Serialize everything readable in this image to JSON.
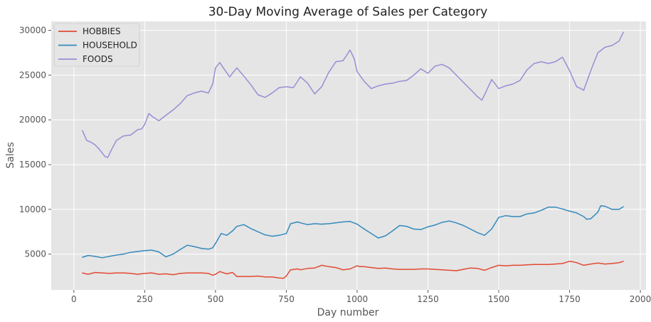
{
  "chart_data": {
    "type": "line",
    "title": "30-Day Moving Average of Sales per Category",
    "xlabel": "Day number",
    "ylabel": "Sales",
    "xlim": [
      -80,
      2020
    ],
    "ylim": [
      1000,
      31000
    ],
    "xticks": [
      0,
      250,
      500,
      750,
      1000,
      1250,
      1500,
      1750,
      2000
    ],
    "yticks": [
      5000,
      10000,
      15000,
      20000,
      25000,
      30000
    ],
    "grid": true,
    "legend_position": "top-left",
    "colors": {
      "background": "#E5E5E5",
      "grid": "#FFFFFF"
    },
    "series": [
      {
        "name": "HOBBIES",
        "color": "#E24A33",
        "x": [
          30,
          50,
          75,
          100,
          125,
          150,
          175,
          200,
          225,
          250,
          275,
          300,
          325,
          350,
          375,
          400,
          425,
          450,
          475,
          490,
          500,
          515,
          540,
          560,
          575,
          600,
          625,
          650,
          675,
          700,
          720,
          740,
          750,
          765,
          790,
          800,
          825,
          850,
          875,
          900,
          925,
          950,
          975,
          1000,
          1010,
          1025,
          1050,
          1075,
          1100,
          1125,
          1150,
          1175,
          1200,
          1225,
          1250,
          1275,
          1300,
          1325,
          1350,
          1375,
          1400,
          1425,
          1450,
          1475,
          1500,
          1525,
          1550,
          1575,
          1600,
          1625,
          1650,
          1675,
          1700,
          1725,
          1750,
          1760,
          1775,
          1800,
          1825,
          1850,
          1875,
          1900,
          1925,
          1940
        ],
        "values": [
          2900,
          2750,
          2950,
          2900,
          2850,
          2900,
          2900,
          2850,
          2750,
          2850,
          2900,
          2750,
          2800,
          2700,
          2850,
          2900,
          2900,
          2900,
          2850,
          2650,
          2750,
          3050,
          2800,
          2950,
          2500,
          2500,
          2500,
          2550,
          2450,
          2450,
          2350,
          2300,
          2550,
          3250,
          3350,
          3250,
          3400,
          3450,
          3750,
          3600,
          3500,
          3250,
          3350,
          3700,
          3600,
          3600,
          3500,
          3400,
          3450,
          3350,
          3300,
          3300,
          3300,
          3350,
          3350,
          3300,
          3250,
          3200,
          3150,
          3300,
          3450,
          3400,
          3200,
          3500,
          3750,
          3700,
          3750,
          3750,
          3800,
          3850,
          3850,
          3850,
          3900,
          3950,
          4200,
          4150,
          4050,
          3750,
          3900,
          4000,
          3900,
          3950,
          4050,
          4200
        ]
      },
      {
        "name": "HOUSEHOLD",
        "color": "#348ABD",
        "x": [
          30,
          50,
          75,
          100,
          125,
          150,
          175,
          200,
          225,
          250,
          275,
          300,
          325,
          350,
          375,
          400,
          425,
          450,
          475,
          490,
          500,
          520,
          540,
          560,
          575,
          600,
          625,
          650,
          675,
          700,
          725,
          750,
          765,
          790,
          800,
          825,
          850,
          875,
          900,
          925,
          950,
          975,
          1000,
          1025,
          1050,
          1075,
          1100,
          1125,
          1150,
          1175,
          1200,
          1225,
          1250,
          1275,
          1300,
          1325,
          1350,
          1375,
          1400,
          1425,
          1450,
          1475,
          1500,
          1525,
          1550,
          1575,
          1600,
          1625,
          1650,
          1675,
          1700,
          1725,
          1750,
          1775,
          1800,
          1810,
          1825,
          1850,
          1860,
          1875,
          1900,
          1925,
          1940
        ],
        "values": [
          4650,
          4850,
          4750,
          4600,
          4750,
          4900,
          5000,
          5200,
          5300,
          5400,
          5450,
          5250,
          4700,
          5000,
          5500,
          6000,
          5850,
          5650,
          5550,
          5700,
          6200,
          7300,
          7100,
          7600,
          8100,
          8300,
          7850,
          7500,
          7150,
          7000,
          7100,
          7300,
          8400,
          8600,
          8500,
          8300,
          8400,
          8350,
          8400,
          8500,
          8600,
          8650,
          8350,
          7800,
          7300,
          6800,
          7050,
          7600,
          8200,
          8100,
          7800,
          7750,
          8050,
          8250,
          8550,
          8700,
          8500,
          8200,
          7800,
          7400,
          7100,
          7800,
          9100,
          9300,
          9200,
          9200,
          9500,
          9600,
          9900,
          10250,
          10250,
          10050,
          9800,
          9600,
          9200,
          8900,
          8950,
          9700,
          10400,
          10350,
          10000,
          10000,
          10300
        ]
      },
      {
        "name": "FOODS",
        "color": "#988ED5",
        "x": [
          30,
          45,
          60,
          75,
          90,
          110,
          120,
          130,
          150,
          175,
          200,
          225,
          240,
          250,
          265,
          280,
          300,
          325,
          350,
          375,
          400,
          425,
          450,
          475,
          490,
          500,
          515,
          530,
          550,
          575,
          600,
          625,
          650,
          675,
          700,
          725,
          750,
          775,
          800,
          825,
          850,
          875,
          900,
          925,
          950,
          965,
          975,
          990,
          1000,
          1025,
          1050,
          1075,
          1100,
          1125,
          1150,
          1175,
          1200,
          1225,
          1250,
          1275,
          1300,
          1325,
          1350,
          1375,
          1400,
          1425,
          1440,
          1450,
          1475,
          1500,
          1525,
          1550,
          1575,
          1600,
          1625,
          1650,
          1675,
          1700,
          1725,
          1750,
          1775,
          1790,
          1800,
          1825,
          1850,
          1875,
          1900,
          1925,
          1940
        ],
        "values": [
          18800,
          17700,
          17500,
          17200,
          16700,
          15900,
          15800,
          16500,
          17700,
          18200,
          18300,
          18900,
          19000,
          19500,
          20700,
          20300,
          19900,
          20500,
          21100,
          21800,
          22700,
          23000,
          23200,
          23000,
          24000,
          25800,
          26400,
          25700,
          24800,
          25800,
          24900,
          23900,
          22800,
          22500,
          23000,
          23600,
          23700,
          23600,
          24800,
          24100,
          22900,
          23700,
          25300,
          26500,
          26600,
          27300,
          27800,
          26800,
          25400,
          24300,
          23500,
          23800,
          24000,
          24100,
          24300,
          24400,
          25000,
          25700,
          25200,
          26000,
          26200,
          25800,
          25000,
          24200,
          23400,
          22600,
          22200,
          22800,
          24500,
          23500,
          23800,
          24000,
          24400,
          25600,
          26300,
          26500,
          26300,
          26500,
          27000,
          25500,
          23700,
          23500,
          23300,
          25500,
          27500,
          28100,
          28300,
          28800,
          29800
        ]
      }
    ]
  }
}
